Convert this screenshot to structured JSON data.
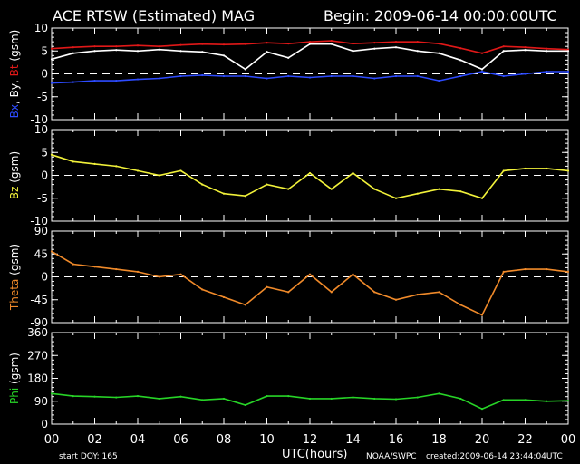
{
  "header": {
    "title": "ACE RTSW (Estimated) MAG",
    "begin": "Begin: 2009-06-14 00:00:00UTC"
  },
  "footer": {
    "start_doy": "start DOY:  165",
    "xlabel": "UTC(hours)",
    "source": "NOAA/SWPC",
    "created": "created:2009-06-14 23:44:04UTC"
  },
  "colors": {
    "background": "#000000",
    "frame": "#ffffff",
    "bx": "#2d4bff",
    "by": "#ffffff",
    "bt": "#e01818",
    "bz": "#f2f23a",
    "theta": "#f08a2a",
    "phi": "#27d427"
  },
  "chart_data": [
    {
      "type": "line",
      "ylabel_parts": [
        {
          "text": "Bx",
          "color": "#2d4bff"
        },
        {
          "text": ", ",
          "color": "#ffffff"
        },
        {
          "text": "By",
          "color": "#ffffff"
        },
        {
          "text": ", ",
          "color": "#ffffff"
        },
        {
          "text": "Bt",
          "color": "#e01818"
        },
        {
          "text": " (gsm)",
          "color": "#ffffff"
        }
      ],
      "ylim": [
        -10,
        10
      ],
      "yticks": [
        10,
        5,
        0,
        -5,
        -10
      ],
      "zero_line": true,
      "series": [
        {
          "name": "Bt",
          "color": "#e01818",
          "x": [
            0,
            1,
            2,
            3,
            4,
            5,
            6,
            7,
            8,
            9,
            10,
            11,
            12,
            13,
            14,
            15,
            16,
            17,
            18,
            19,
            20,
            21,
            22,
            23,
            24
          ],
          "y": [
            5.5,
            5.8,
            6.0,
            6.0,
            6.2,
            6.0,
            6.3,
            6.5,
            6.4,
            6.5,
            6.8,
            6.6,
            7.0,
            7.2,
            6.6,
            6.8,
            7.0,
            7.0,
            6.6,
            5.6,
            4.5,
            6.0,
            5.8,
            5.5,
            5.3
          ]
        },
        {
          "name": "By",
          "color": "#ffffff",
          "x": [
            0,
            1,
            2,
            3,
            4,
            5,
            6,
            7,
            8,
            9,
            10,
            11,
            12,
            13,
            14,
            15,
            16,
            17,
            18,
            19,
            20,
            21,
            22,
            23,
            24
          ],
          "y": [
            3.2,
            4.5,
            5.0,
            5.2,
            5.0,
            5.3,
            5.0,
            4.8,
            4.0,
            1.0,
            4.8,
            3.5,
            6.5,
            6.5,
            5.0,
            5.5,
            5.8,
            5.0,
            4.5,
            3.0,
            1.0,
            5.0,
            5.2,
            5.0,
            5.0
          ]
        },
        {
          "name": "Bx",
          "color": "#2d4bff",
          "x": [
            0,
            1,
            2,
            3,
            4,
            5,
            6,
            7,
            8,
            9,
            10,
            11,
            12,
            13,
            14,
            15,
            16,
            17,
            18,
            19,
            20,
            21,
            22,
            23,
            24
          ],
          "y": [
            -2.0,
            -1.8,
            -1.5,
            -1.5,
            -1.2,
            -1.0,
            -0.5,
            -0.3,
            -0.5,
            -0.5,
            -1.0,
            -0.5,
            -0.8,
            -0.5,
            -0.5,
            -1.0,
            -0.5,
            -0.5,
            -1.5,
            -0.5,
            0.5,
            -0.5,
            0.0,
            0.5,
            0.5
          ]
        }
      ]
    },
    {
      "type": "line",
      "ylabel_parts": [
        {
          "text": "Bz",
          "color": "#f2f23a"
        },
        {
          "text": "  (gsm)",
          "color": "#ffffff"
        }
      ],
      "ylim": [
        -10,
        10
      ],
      "yticks": [
        10,
        5,
        0,
        -5,
        -10
      ],
      "zero_line": true,
      "series": [
        {
          "name": "Bz",
          "color": "#f2f23a",
          "x": [
            0,
            1,
            2,
            3,
            4,
            5,
            6,
            7,
            8,
            9,
            10,
            11,
            12,
            13,
            14,
            15,
            16,
            17,
            18,
            19,
            20,
            21,
            22,
            23,
            24
          ],
          "y": [
            4.5,
            3.0,
            2.5,
            2.0,
            1.0,
            0.0,
            1.0,
            -2.0,
            -4.0,
            -4.5,
            -2.0,
            -3.0,
            0.5,
            -3.0,
            0.5,
            -3.0,
            -5.0,
            -4.0,
            -3.0,
            -3.5,
            -5.0,
            1.0,
            1.5,
            1.5,
            1.0
          ]
        }
      ]
    },
    {
      "type": "line",
      "ylabel_parts": [
        {
          "text": "Theta",
          "color": "#f08a2a"
        },
        {
          "text": " (gsm)",
          "color": "#ffffff"
        }
      ],
      "ylim": [
        -90,
        90
      ],
      "yticks": [
        90,
        45,
        0,
        -45,
        -90
      ],
      "zero_line": true,
      "series": [
        {
          "name": "Theta",
          "color": "#f08a2a",
          "x": [
            0,
            1,
            2,
            3,
            4,
            5,
            6,
            7,
            8,
            9,
            10,
            11,
            12,
            13,
            14,
            15,
            16,
            17,
            18,
            19,
            20,
            21,
            22,
            23,
            24
          ],
          "y": [
            50,
            25,
            20,
            15,
            10,
            0,
            5,
            -25,
            -40,
            -55,
            -20,
            -30,
            5,
            -30,
            5,
            -30,
            -45,
            -35,
            -30,
            -55,
            -75,
            10,
            15,
            15,
            10
          ]
        }
      ]
    },
    {
      "type": "line",
      "ylabel_parts": [
        {
          "text": "Phi",
          "color": "#27d427"
        },
        {
          "text": "  (gsm)",
          "color": "#ffffff"
        }
      ],
      "ylim": [
        0,
        360
      ],
      "yticks": [
        360,
        270,
        180,
        90,
        0
      ],
      "zero_line": false,
      "series": [
        {
          "name": "Phi",
          "color": "#27d427",
          "x": [
            0,
            1,
            2,
            3,
            4,
            5,
            6,
            7,
            8,
            9,
            10,
            11,
            12,
            13,
            14,
            15,
            16,
            17,
            18,
            19,
            20,
            21,
            22,
            23,
            24
          ],
          "y": [
            120,
            110,
            108,
            105,
            110,
            100,
            108,
            95,
            100,
            75,
            110,
            110,
            100,
            100,
            105,
            100,
            98,
            105,
            120,
            100,
            60,
            95,
            95,
            90,
            92
          ]
        }
      ]
    }
  ],
  "x_axis": {
    "range": [
      0,
      24
    ],
    "tick_labels": [
      "00",
      "02",
      "04",
      "06",
      "08",
      "10",
      "12",
      "14",
      "16",
      "18",
      "20",
      "22",
      "00"
    ]
  }
}
